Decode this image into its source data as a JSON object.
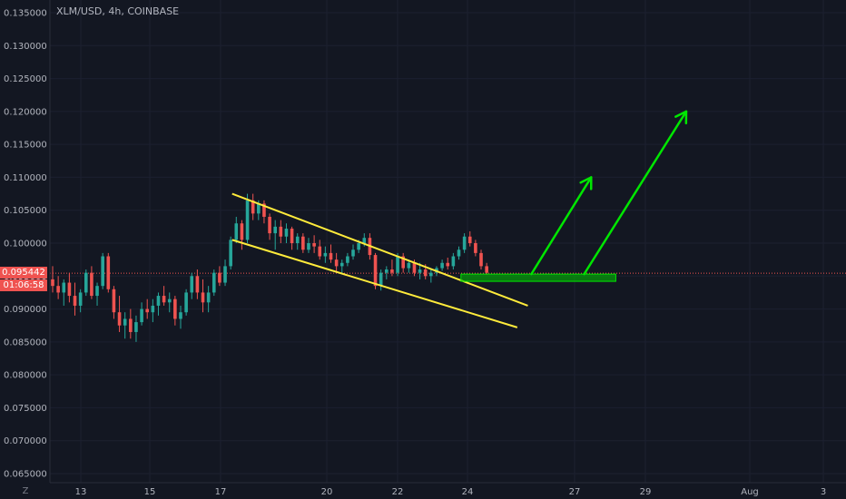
{
  "header": {
    "symbol_text": "XLM/USD, 4h, COINBASE"
  },
  "price_axis": {
    "labels": [
      "0.135000",
      "0.130000",
      "0.125000",
      "0.120000",
      "0.115000",
      "0.110000",
      "0.105000",
      "0.100000",
      "0.095000",
      "0.090000",
      "0.085000",
      "0.080000",
      "0.075000",
      "0.070000",
      "0.065000"
    ]
  },
  "time_axis": {
    "labels": [
      "13",
      "15",
      "17",
      "20",
      "22",
      "24",
      "27",
      "29",
      "Aug",
      "3"
    ]
  },
  "current_price": {
    "value": "0.095442",
    "countdown": "01:06:58"
  },
  "zoom_label": "Z",
  "colors": {
    "background": "#131722",
    "up": "#26a69a",
    "down": "#ef5350",
    "channel": "#ffeb3b",
    "projection": "#00e600"
  },
  "chart_data": {
    "type": "candlestick",
    "symbol": "XLM/USD",
    "interval": "4h",
    "exchange": "COINBASE",
    "ylim": [
      0.0635,
      0.1365
    ],
    "current_price": 0.095442,
    "candles": [
      [
        0.0945,
        0.0965,
        0.0925,
        0.0935
      ],
      [
        0.0935,
        0.095,
        0.0915,
        0.0925
      ],
      [
        0.0925,
        0.0945,
        0.0905,
        0.094
      ],
      [
        0.094,
        0.0955,
        0.091,
        0.092
      ],
      [
        0.092,
        0.094,
        0.089,
        0.0905
      ],
      [
        0.0905,
        0.093,
        0.0895,
        0.0925
      ],
      [
        0.0925,
        0.096,
        0.092,
        0.0955
      ],
      [
        0.0955,
        0.0965,
        0.0915,
        0.092
      ],
      [
        0.092,
        0.094,
        0.0905,
        0.0935
      ],
      [
        0.0935,
        0.0985,
        0.093,
        0.098
      ],
      [
        0.098,
        0.0985,
        0.0925,
        0.093
      ],
      [
        0.093,
        0.0935,
        0.0885,
        0.0895
      ],
      [
        0.0895,
        0.092,
        0.0865,
        0.0875
      ],
      [
        0.0875,
        0.0895,
        0.0855,
        0.0885
      ],
      [
        0.0885,
        0.09,
        0.0855,
        0.0865
      ],
      [
        0.0865,
        0.089,
        0.085,
        0.088
      ],
      [
        0.088,
        0.091,
        0.0875,
        0.09
      ],
      [
        0.09,
        0.0915,
        0.0885,
        0.0895
      ],
      [
        0.0895,
        0.0915,
        0.088,
        0.0905
      ],
      [
        0.0905,
        0.0925,
        0.089,
        0.092
      ],
      [
        0.092,
        0.0935,
        0.0905,
        0.091
      ],
      [
        0.091,
        0.0925,
        0.0895,
        0.0915
      ],
      [
        0.0915,
        0.092,
        0.0875,
        0.0885
      ],
      [
        0.0885,
        0.0905,
        0.087,
        0.0895
      ],
      [
        0.0895,
        0.093,
        0.089,
        0.0925
      ],
      [
        0.0925,
        0.0955,
        0.0915,
        0.095
      ],
      [
        0.095,
        0.096,
        0.0915,
        0.0925
      ],
      [
        0.0925,
        0.0945,
        0.0895,
        0.091
      ],
      [
        0.091,
        0.0935,
        0.0895,
        0.0925
      ],
      [
        0.0925,
        0.096,
        0.092,
        0.0955
      ],
      [
        0.0955,
        0.0965,
        0.0935,
        0.094
      ],
      [
        0.094,
        0.0975,
        0.0935,
        0.0965
      ],
      [
        0.0965,
        0.101,
        0.096,
        0.1005
      ],
      [
        0.1005,
        0.104,
        0.1,
        0.103
      ],
      [
        0.103,
        0.1035,
        0.099,
        0.1005
      ],
      [
        0.1005,
        0.1075,
        0.1,
        0.1065
      ],
      [
        0.1065,
        0.1075,
        0.1035,
        0.1045
      ],
      [
        0.1045,
        0.1065,
        0.1035,
        0.106
      ],
      [
        0.106,
        0.1065,
        0.103,
        0.104
      ],
      [
        0.104,
        0.1045,
        0.1005,
        0.1015
      ],
      [
        0.1015,
        0.1035,
        0.099,
        0.1025
      ],
      [
        0.1025,
        0.1035,
        0.1,
        0.101
      ],
      [
        0.101,
        0.103,
        0.1,
        0.1022
      ],
      [
        0.1022,
        0.1025,
        0.099,
        0.1
      ],
      [
        0.1,
        0.1015,
        0.099,
        0.101
      ],
      [
        0.101,
        0.1015,
        0.0985,
        0.099
      ],
      [
        0.099,
        0.1008,
        0.0985,
        0.1
      ],
      [
        0.1,
        0.1012,
        0.0985,
        0.0995
      ],
      [
        0.0995,
        0.1005,
        0.0975,
        0.098
      ],
      [
        0.098,
        0.0995,
        0.097,
        0.0985
      ],
      [
        0.0985,
        0.0998,
        0.097,
        0.0975
      ],
      [
        0.0975,
        0.0985,
        0.0955,
        0.0965
      ],
      [
        0.0965,
        0.0975,
        0.0955,
        0.097
      ],
      [
        0.097,
        0.0985,
        0.0965,
        0.098
      ],
      [
        0.098,
        0.0998,
        0.0975,
        0.099
      ],
      [
        0.099,
        0.1005,
        0.0985,
        0.1
      ],
      [
        0.1,
        0.1015,
        0.0995,
        0.1008
      ],
      [
        0.1008,
        0.1015,
        0.0975,
        0.0982
      ],
      [
        0.0982,
        0.0985,
        0.093,
        0.0935
      ],
      [
        0.0935,
        0.096,
        0.0928,
        0.0955
      ],
      [
        0.0955,
        0.0965,
        0.0945,
        0.096
      ],
      [
        0.096,
        0.0975,
        0.095,
        0.0955
      ],
      [
        0.0955,
        0.0985,
        0.095,
        0.098
      ],
      [
        0.098,
        0.0985,
        0.0955,
        0.0962
      ],
      [
        0.0962,
        0.0975,
        0.0955,
        0.097
      ],
      [
        0.097,
        0.0975,
        0.095,
        0.0955
      ],
      [
        0.0955,
        0.097,
        0.0945,
        0.096
      ],
      [
        0.096,
        0.0968,
        0.0945,
        0.095
      ],
      [
        0.095,
        0.096,
        0.094,
        0.0955
      ],
      [
        0.0955,
        0.0965,
        0.095,
        0.0962
      ],
      [
        0.0962,
        0.0975,
        0.0958,
        0.097
      ],
      [
        0.097,
        0.0978,
        0.096,
        0.0965
      ],
      [
        0.0965,
        0.0985,
        0.096,
        0.098
      ],
      [
        0.098,
        0.0995,
        0.0975,
        0.099
      ],
      [
        0.099,
        0.1015,
        0.0985,
        0.101
      ],
      [
        0.101,
        0.1018,
        0.0995,
        0.1
      ],
      [
        0.1,
        0.1005,
        0.098,
        0.0985
      ],
      [
        0.0985,
        0.099,
        0.096,
        0.0965
      ],
      [
        0.0965,
        0.097,
        0.0952,
        0.0955
      ]
    ],
    "annotations": {
      "channel_upper": [
        [
          0.1075,
          17.3
        ],
        [
          0.0905,
          25.7
        ]
      ],
      "channel_lower": [
        [
          0.1005,
          17.3
        ],
        [
          0.0872,
          25.4
        ]
      ],
      "support_zone": {
        "from": 23.8,
        "to": 28.2,
        "top": 0.0953,
        "bottom": 0.0942
      },
      "arrow_1": [
        [
          0.0953,
          25.8
        ],
        [
          0.11,
          27.5
        ]
      ],
      "arrow_2": [
        [
          0.0953,
          27.3
        ],
        [
          0.12,
          30.2
        ]
      ]
    }
  }
}
